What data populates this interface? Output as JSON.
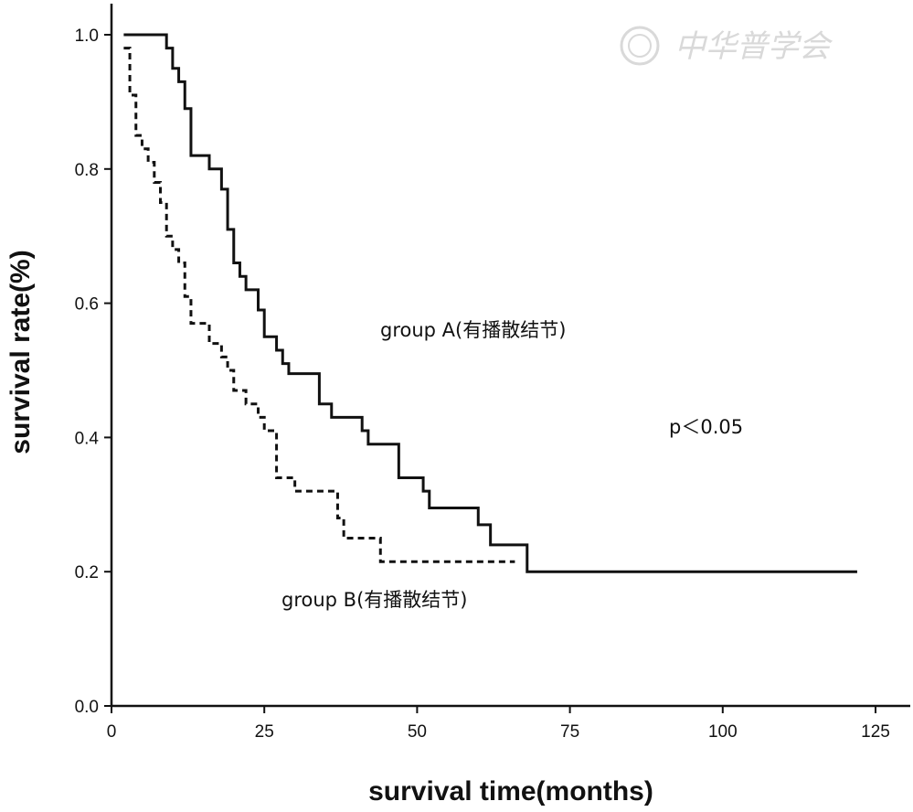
{
  "chart_data": {
    "type": "line",
    "subtype": "kaplan-meier",
    "title": "",
    "xlabel": "survival time(months)",
    "ylabel": "survival rate(%)",
    "xlim": [
      0,
      125
    ],
    "ylim": [
      0,
      1.0
    ],
    "x_ticks": [
      0,
      25,
      50,
      75,
      100,
      125
    ],
    "x_tick_labels": [
      "0",
      "25",
      "50",
      "75",
      "100",
      "125"
    ],
    "y_ticks": [
      0.0,
      0.2,
      0.4,
      0.6,
      0.8,
      1.0
    ],
    "y_tick_labels": [
      "0.0",
      "0.2",
      "0.4",
      "0.6",
      "0.8",
      "1.0"
    ],
    "series": [
      {
        "name": "group A(有播散结节)",
        "line_style": "solid",
        "steps": [
          [
            2,
            1.0
          ],
          [
            9,
            0.98
          ],
          [
            10,
            0.95
          ],
          [
            11,
            0.93
          ],
          [
            12,
            0.89
          ],
          [
            13,
            0.82
          ],
          [
            16,
            0.8
          ],
          [
            18,
            0.77
          ],
          [
            19,
            0.71
          ],
          [
            20,
            0.66
          ],
          [
            21,
            0.64
          ],
          [
            22,
            0.62
          ],
          [
            24,
            0.59
          ],
          [
            25,
            0.55
          ],
          [
            27,
            0.53
          ],
          [
            28,
            0.51
          ],
          [
            29,
            0.495
          ],
          [
            34,
            0.45
          ],
          [
            36,
            0.43
          ],
          [
            41,
            0.41
          ],
          [
            42,
            0.39
          ],
          [
            47,
            0.34
          ],
          [
            51,
            0.32
          ],
          [
            52,
            0.295
          ],
          [
            60,
            0.27
          ],
          [
            62,
            0.24
          ],
          [
            68,
            0.2
          ],
          [
            122,
            0.2
          ]
        ]
      },
      {
        "name": "group B(有播散结节)",
        "line_style": "dashed",
        "steps": [
          [
            2,
            0.98
          ],
          [
            3,
            0.91
          ],
          [
            4,
            0.85
          ],
          [
            5,
            0.83
          ],
          [
            6,
            0.81
          ],
          [
            7,
            0.78
          ],
          [
            8,
            0.75
          ],
          [
            9,
            0.7
          ],
          [
            10,
            0.68
          ],
          [
            11,
            0.66
          ],
          [
            12,
            0.61
          ],
          [
            13,
            0.57
          ],
          [
            16,
            0.54
          ],
          [
            18,
            0.52
          ],
          [
            19,
            0.5
          ],
          [
            20,
            0.47
          ],
          [
            22,
            0.45
          ],
          [
            24,
            0.43
          ],
          [
            25,
            0.41
          ],
          [
            27,
            0.34
          ],
          [
            30,
            0.32
          ],
          [
            37,
            0.28
          ],
          [
            38,
            0.25
          ],
          [
            44,
            0.215
          ],
          [
            66,
            0.215
          ]
        ]
      }
    ],
    "annotations": [
      {
        "text": "group A(有播散结节)",
        "series": 0
      },
      {
        "text": "group B(有播散结节)",
        "series": 1
      },
      {
        "text": "p＜0.05"
      }
    ]
  },
  "watermark": "中华普学会",
  "colors": {
    "line": "#111111",
    "axis": "#111111",
    "background": "#ffffff",
    "watermark": "#d9d9d9"
  }
}
